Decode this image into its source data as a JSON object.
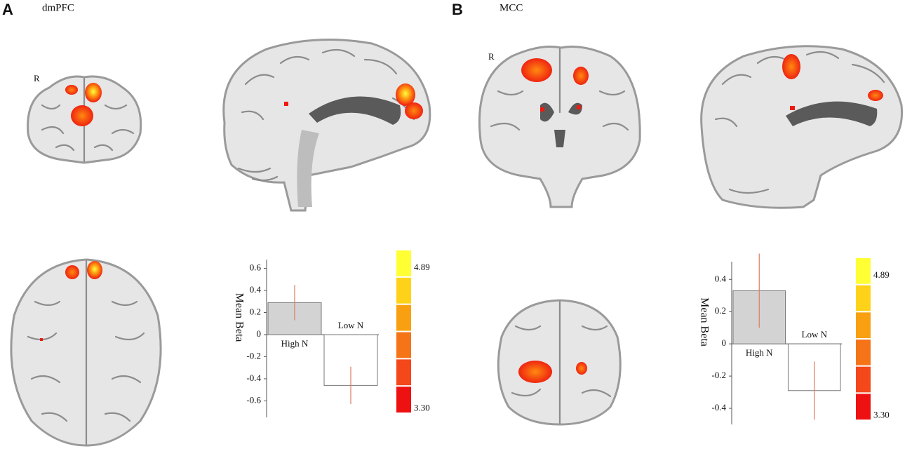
{
  "panels": [
    {
      "letter": "A",
      "region": "dmPFC",
      "orientation": "R"
    },
    {
      "letter": "B",
      "region": "MCC",
      "orientation": "R"
    }
  ],
  "chart_data": [
    {
      "type": "bar",
      "y_label": "Mean Beta",
      "categories": [
        "High N",
        "Low N"
      ],
      "values": [
        0.29,
        -0.46
      ],
      "errors": [
        0.16,
        0.17
      ],
      "colors": [
        "#d3d3d3",
        "#ffffff"
      ],
      "error_color": "#e07a5f",
      "ylim": [
        -0.75,
        0.68
      ],
      "yticks": [
        0.6,
        0.4,
        0.2,
        0,
        -0.2,
        -0.4,
        -0.6
      ],
      "colorbar": {
        "colors": [
          "#ffff33",
          "#ffd21a",
          "#f8a010",
          "#f57418",
          "#f4471a",
          "#ee1111"
        ],
        "lim": [
          3.24,
          5.09
        ],
        "ticks": [
          4.89,
          {
            "value": 3.3,
            "label": "3.30"
          }
        ]
      }
    },
    {
      "type": "bar",
      "y_label": "Mean Beta",
      "categories": [
        "High N",
        "Low N"
      ],
      "values": [
        0.33,
        -0.29
      ],
      "errors": [
        0.23,
        0.18
      ],
      "colors": [
        "#d3d3d3",
        "#ffffff"
      ],
      "error_color": "#e07a5f",
      "ylim": [
        -0.5,
        0.51
      ],
      "yticks": [
        0.4,
        0.2,
        0,
        -0.2,
        -0.4
      ],
      "colorbar": {
        "colors": [
          "#ffff33",
          "#ffd21a",
          "#f8a010",
          "#f57418",
          "#f4471a",
          "#ee1111"
        ],
        "lim": [
          3.24,
          5.09
        ],
        "ticks": [
          4.89,
          {
            "value": 3.3,
            "label": "3.30"
          }
        ]
      }
    }
  ]
}
